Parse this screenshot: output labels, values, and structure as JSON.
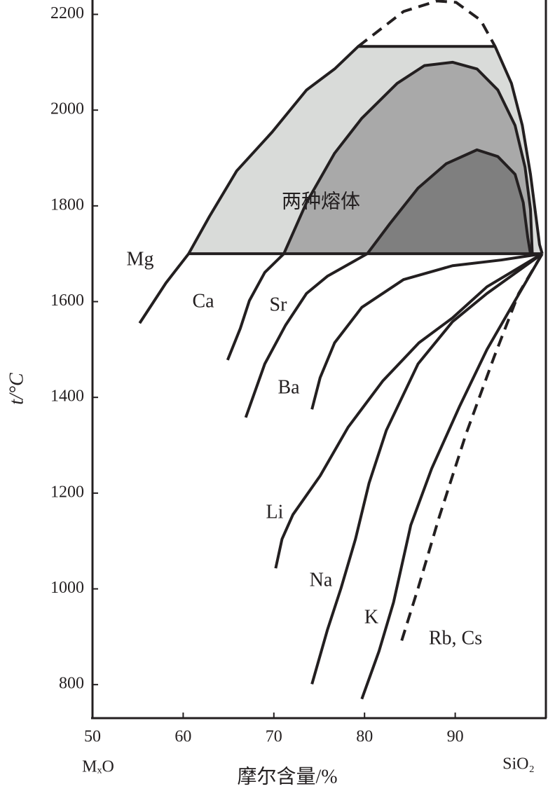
{
  "chart_data": {
    "type": "line",
    "ylabel": "t/°C",
    "xlabel": "摩尔含量/%",
    "x_end_labels": [
      "MₓO",
      "SiO₂"
    ],
    "region_label": "两种熔体",
    "xlim": [
      50,
      100
    ],
    "ylim": [
      730,
      2230
    ],
    "xticks": [
      50,
      60,
      70,
      80,
      90
    ],
    "yticks": [
      800,
      1000,
      1200,
      1400,
      1600,
      1800,
      2000,
      2200
    ],
    "series": [
      {
        "name": "Mg",
        "color": "#231f20",
        "fill": "#d9dbd9",
        "x": [
          55.2,
          58.1,
          60.6,
          62.9,
          65.9,
          69.8,
          73.6,
          76.7,
          79.3,
          94.4,
          96.2,
          97.4,
          98.3,
          98.9,
          99.3,
          99.6
        ],
        "values": [
          1555,
          1639,
          1700,
          1778,
          1873,
          1954,
          2042,
          2086,
          2133,
          2133,
          2056,
          1968,
          1866,
          1778,
          1719,
          1700
        ]
      },
      {
        "name": "Ca",
        "color": "#231f20",
        "fill": "#a9a9a9",
        "x": [
          64.9,
          66.3,
          67.3,
          69.0,
          71.1,
          73.6,
          76.7,
          79.7,
          83.6,
          86.6,
          89.7,
          92.4,
          94.7,
          96.6,
          97.7,
          98.3,
          98.5
        ],
        "values": [
          1478,
          1544,
          1602,
          1661,
          1700,
          1807,
          1910,
          1983,
          2056,
          2093,
          2100,
          2086,
          2042,
          1968,
          1881,
          1793,
          1700
        ]
      },
      {
        "name": "Sr",
        "color": "#231f20",
        "fill": "#7f7f7f",
        "x": [
          66.9,
          69.0,
          71.3,
          73.6,
          75.9,
          80.3,
          82.8,
          85.9,
          89.0,
          92.4,
          94.7,
          96.6,
          97.5,
          98.0,
          98.3
        ],
        "values": [
          1358,
          1470,
          1551,
          1617,
          1653,
          1700,
          1763,
          1837,
          1888,
          1917,
          1903,
          1866,
          1807,
          1734,
          1700
        ]
      },
      {
        "name": "Ba",
        "color": "#231f20",
        "x": [
          74.2,
          75.1,
          76.7,
          79.7,
          84.3,
          89.7,
          95.1,
          99.6
        ],
        "values": [
          1375,
          1441,
          1514,
          1588,
          1646,
          1675,
          1687,
          1700
        ]
      },
      {
        "name": "Li",
        "color": "#231f20",
        "x": [
          70.2,
          70.9,
          72.1,
          75.1,
          78.2,
          82.0,
          86.0,
          89.7,
          93.5,
          99.6
        ],
        "values": [
          1043,
          1104,
          1155,
          1236,
          1338,
          1434,
          1514,
          1566,
          1631,
          1700
        ]
      },
      {
        "name": "Na",
        "color": "#231f20",
        "x": [
          74.2,
          75.9,
          77.4,
          79.0,
          80.5,
          82.4,
          85.9,
          89.7,
          93.5,
          99.6
        ],
        "values": [
          801,
          914,
          1001,
          1104,
          1221,
          1331,
          1470,
          1558,
          1617,
          1700
        ]
      },
      {
        "name": "K",
        "color": "#231f20",
        "x": [
          79.7,
          81.6,
          83.2,
          85.1,
          87.4,
          90.5,
          93.5,
          96.6,
          99.6
        ],
        "values": [
          770,
          870,
          972,
          1133,
          1251,
          1382,
          1500,
          1602,
          1700
        ]
      },
      {
        "name": "Rb, Cs",
        "color": "#231f20",
        "dashed": true,
        "x": [
          84.1,
          85.9,
          88.2,
          91.2,
          94.3,
          97.0,
          99.6
        ],
        "values": [
          892,
          1001,
          1148,
          1324,
          1485,
          1617,
          1700
        ]
      },
      {
        "color": "#231f20",
        "dashed": true,
        "x": [
          79.3,
          84.3,
          88.0,
          90.1,
          92.8,
          94.4
        ],
        "values": [
          2133,
          2206,
          2228,
          2225,
          2188,
          2133
        ]
      },
      {
        "color": "#231f20",
        "x": [
          60.6,
          99.6
        ],
        "values": [
          1700,
          1700
        ]
      }
    ]
  }
}
